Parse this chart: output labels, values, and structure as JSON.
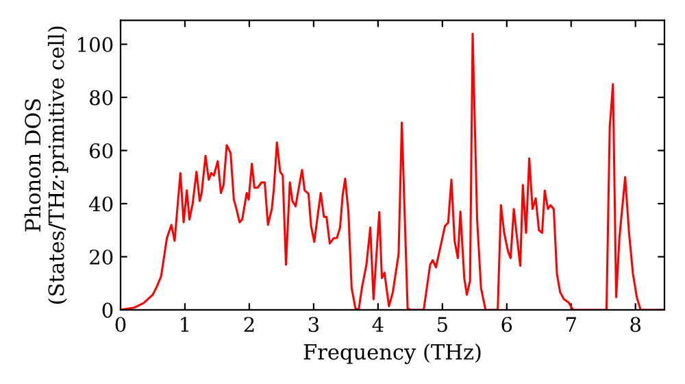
{
  "chart_data": {
    "type": "line",
    "xlabel": "Frequency (THz)",
    "ylabel": "Phonon DOS\n(States/THz·primitive cell)",
    "xlim": [
      0,
      8.45
    ],
    "ylim": [
      0,
      109
    ],
    "xticks": [
      0,
      1,
      2,
      3,
      4,
      5,
      6,
      7,
      8
    ],
    "yticks": [
      0,
      20,
      40,
      60,
      80,
      100
    ],
    "grid": false,
    "legend": false,
    "marker": "none",
    "line_style": "solid",
    "series": [
      {
        "color": "#ff0000",
        "x": [
          0,
          0.22,
          0.36,
          0.5,
          0.56,
          0.63,
          0.72,
          0.79,
          0.84,
          0.93,
          0.98,
          1.03,
          1.07,
          1.12,
          1.18,
          1.23,
          1.26,
          1.32,
          1.37,
          1.41,
          1.45,
          1.51,
          1.56,
          1.6,
          1.65,
          1.71,
          1.76,
          1.79,
          1.85,
          1.89,
          1.96,
          1.99,
          2.04,
          2.08,
          2.13,
          2.19,
          2.24,
          2.29,
          2.35,
          2.38,
          2.43,
          2.48,
          2.52,
          2.57,
          2.63,
          2.67,
          2.72,
          2.77,
          2.82,
          2.86,
          2.92,
          2.96,
          3.01,
          3.06,
          3.11,
          3.16,
          3.2,
          3.25,
          3.31,
          3.36,
          3.41,
          3.45,
          3.49,
          3.54,
          3.59,
          3.65,
          3.7,
          3.75,
          3.82,
          3.88,
          3.93,
          4.02,
          4.06,
          4.1,
          4.17,
          4.23,
          4.32,
          4.37,
          4.46,
          4.51,
          4.71,
          4.81,
          4.85,
          4.9,
          4.99,
          5.04,
          5.09,
          5.14,
          5.19,
          5.24,
          5.28,
          5.34,
          5.38,
          5.43,
          5.47,
          5.54,
          5.6,
          5.67,
          5.86,
          5.91,
          5.96,
          6.02,
          6.06,
          6.11,
          6.16,
          6.21,
          6.25,
          6.3,
          6.35,
          6.4,
          6.45,
          6.5,
          6.55,
          6.59,
          6.64,
          6.68,
          6.73,
          6.78,
          6.83,
          6.89,
          6.96,
          7.03,
          7.55,
          7.6,
          7.65,
          7.7,
          7.75,
          7.84,
          7.9,
          7.96,
          8.02,
          8.08,
          8.45
        ],
        "values": [
          0,
          0.9,
          2.6,
          5.7,
          8.6,
          12.6,
          27,
          32,
          26,
          51.5,
          33,
          45,
          34,
          40,
          52,
          41,
          44,
          58,
          49,
          51.5,
          50.6,
          56,
          44,
          47,
          62,
          59,
          41.5,
          39,
          33,
          34,
          44,
          41.5,
          55,
          46,
          46,
          48,
          48,
          32,
          38,
          45,
          63,
          52,
          50.6,
          17,
          48,
          41,
          39,
          46,
          52.7,
          45,
          43.7,
          31.6,
          25.6,
          35,
          44,
          35,
          35,
          25,
          27,
          27,
          31,
          43,
          49.4,
          36.8,
          8.3,
          0.5,
          0,
          8.3,
          17,
          31,
          4,
          36.8,
          12,
          14,
          1.4,
          6.6,
          21,
          70.5,
          0.5,
          0,
          0,
          17,
          18.7,
          16,
          26,
          31.6,
          32.8,
          49,
          26,
          19.5,
          37,
          12,
          5.7,
          11,
          104,
          34,
          8.3,
          0,
          0,
          39.4,
          29,
          22,
          19.5,
          38,
          27,
          16.6,
          47,
          29,
          57,
          38,
          42,
          30,
          29,
          44.9,
          38,
          39.4,
          38,
          13.5,
          6.6,
          4,
          2.8,
          0,
          0,
          68.7,
          85,
          4.8,
          27,
          50,
          29,
          13.8,
          4.8,
          0,
          0
        ]
      }
    ]
  }
}
